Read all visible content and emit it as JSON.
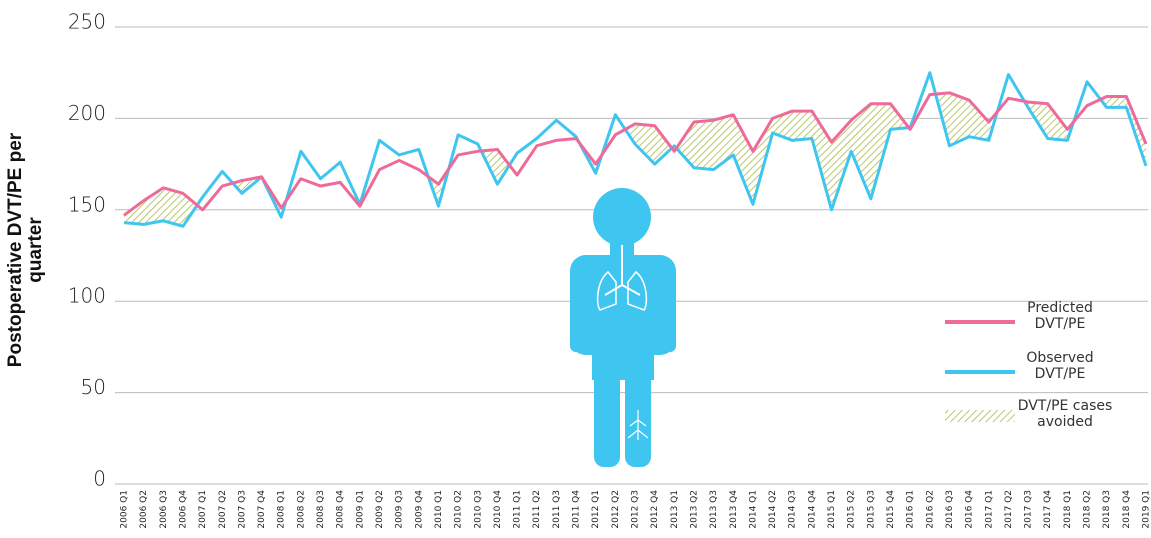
{
  "chart_data": {
    "type": "line",
    "y_label": "Postoperative DVT/PE per quarter",
    "categories": [
      "2006 Q1",
      "2006 Q2",
      "2006 Q3",
      "2006 Q4",
      "2007 Q1",
      "2007 Q2",
      "2007 Q3",
      "2007 Q4",
      "2008 Q1",
      "2008 Q2",
      "2008 Q3",
      "2008 Q4",
      "2009 Q1",
      "2009 Q2",
      "2009 Q3",
      "2009 Q4",
      "2010 Q1",
      "2010 Q2",
      "2010 Q3",
      "2010 Q4",
      "2011 Q1",
      "2011 Q2",
      "2011 Q3",
      "2011 Q4",
      "2012 Q1",
      "2012 Q2",
      "2012 Q3",
      "2012 Q4",
      "2013 Q1",
      "2013 Q2",
      "2013 Q3",
      "2013 Q4",
      "2014 Q1",
      "2014 Q2",
      "2014 Q3",
      "2014 Q4",
      "2015 Q1",
      "2015 Q2",
      "2015 Q3",
      "2015 Q4",
      "2016 Q1",
      "2016 Q2",
      "2016 Q3",
      "2016 Q4",
      "2017 Q1",
      "2017 Q2",
      "2017 Q3",
      "2017 Q4",
      "2018 Q1",
      "2018 Q2",
      "2018 Q3",
      "2018 Q4",
      "2019 Q1"
    ],
    "series": [
      {
        "name": "Predicted DVT/PE",
        "color": "#ee6a9a",
        "values": [
          147,
          155,
          162,
          159,
          150,
          163,
          166,
          168,
          151,
          167,
          163,
          165,
          152,
          172,
          177,
          172,
          164,
          180,
          182,
          183,
          169,
          185,
          188,
          189,
          175,
          191,
          197,
          196,
          182,
          198,
          199,
          202,
          182,
          200,
          204,
          204,
          187,
          199,
          208,
          208,
          194,
          213,
          214,
          210,
          198,
          211,
          209,
          208,
          194,
          207,
          212,
          212,
          186
        ]
      },
      {
        "name": "Observed DVT/PE",
        "color": "#3ec6f0",
        "values": [
          143,
          142,
          144,
          141,
          157,
          171,
          159,
          168,
          146,
          182,
          167,
          176,
          153,
          188,
          180,
          183,
          152,
          191,
          186,
          164,
          181,
          189,
          199,
          190,
          170,
          202,
          186,
          175,
          185,
          173,
          172,
          180,
          153,
          192,
          188,
          189,
          150,
          182,
          156,
          194,
          195,
          225,
          185,
          190,
          188,
          224,
          206,
          189,
          188,
          220,
          206,
          206,
          174
        ]
      }
    ],
    "area_label": "DVT/PE cases avoided",
    "area_color": "#b8c86a",
    "ylim": [
      0,
      250
    ],
    "yticks": [
      0,
      50,
      100,
      150,
      200,
      250
    ],
    "grid": true
  }
}
